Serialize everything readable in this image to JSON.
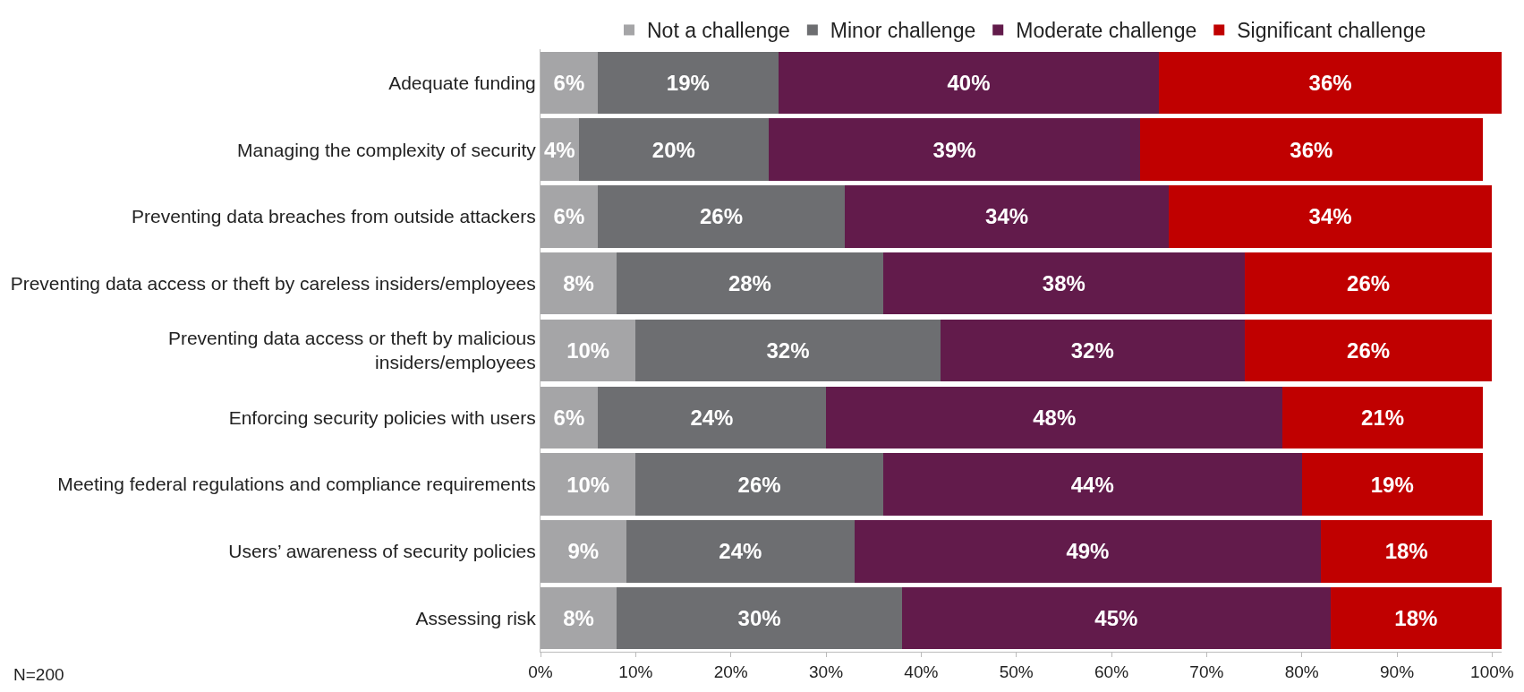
{
  "chart_data": {
    "type": "bar",
    "orientation": "horizontal",
    "stacked": true,
    "legend": "top",
    "categories": [
      "Adequate funding",
      "Managing the complexity of security",
      "Preventing data breaches from outside attackers",
      "Preventing data access or theft by careless insiders/employees",
      "Preventing data access or theft by malicious\ninsiders/employees",
      "Enforcing security policies with users",
      "Meeting federal regulations and compliance requirements",
      "Users’ awareness of security policies",
      "Assessing risk"
    ],
    "series": [
      {
        "name": "Not a challenge",
        "color": "#a5a5a7",
        "values": [
          6,
          4,
          6,
          8,
          10,
          6,
          10,
          9,
          8
        ],
        "value_labels": [
          "6%",
          "4%",
          "6%",
          "8%",
          "10%",
          "6%",
          "10%",
          "9%",
          "8%"
        ]
      },
      {
        "name": "Minor challenge",
        "color": "#6d6e71",
        "values": [
          19,
          20,
          26,
          28,
          32,
          24,
          26,
          24,
          30
        ],
        "value_labels": [
          "19%",
          "20%",
          "26%",
          "28%",
          "32%",
          "24%",
          "26%",
          "24%",
          "30%"
        ]
      },
      {
        "name": "Moderate challenge",
        "color": "#621b4b",
        "values": [
          40,
          39,
          34,
          38,
          32,
          48,
          44,
          49,
          45
        ],
        "value_labels": [
          "40%",
          "39%",
          "34%",
          "38%",
          "32%",
          "48%",
          "44%",
          "49%",
          "45%"
        ]
      },
      {
        "name": "Significant challenge",
        "color": "#c00000",
        "values": [
          36,
          36,
          34,
          26,
          26,
          21,
          19,
          18,
          18
        ],
        "value_labels": [
          "36%",
          "36%",
          "34%",
          "26%",
          "26%",
          "21%",
          "19%",
          "18%",
          "18%"
        ]
      }
    ],
    "xlim": [
      0,
      101
    ],
    "xticks": [
      {
        "value": 0,
        "label": "0%"
      },
      {
        "value": 10,
        "label": "10%"
      },
      {
        "value": 20,
        "label": "20%"
      },
      {
        "value": 30,
        "label": "30%"
      },
      {
        "value": 40,
        "label": "40%"
      },
      {
        "value": 50,
        "label": "50%"
      },
      {
        "value": 60,
        "label": "60%"
      },
      {
        "value": 70,
        "label": "70%"
      },
      {
        "value": 80,
        "label": "80%"
      },
      {
        "value": 90,
        "label": "90%"
      },
      {
        "value": 100,
        "label": "100%"
      }
    ],
    "annotations": [
      "N=200"
    ]
  }
}
